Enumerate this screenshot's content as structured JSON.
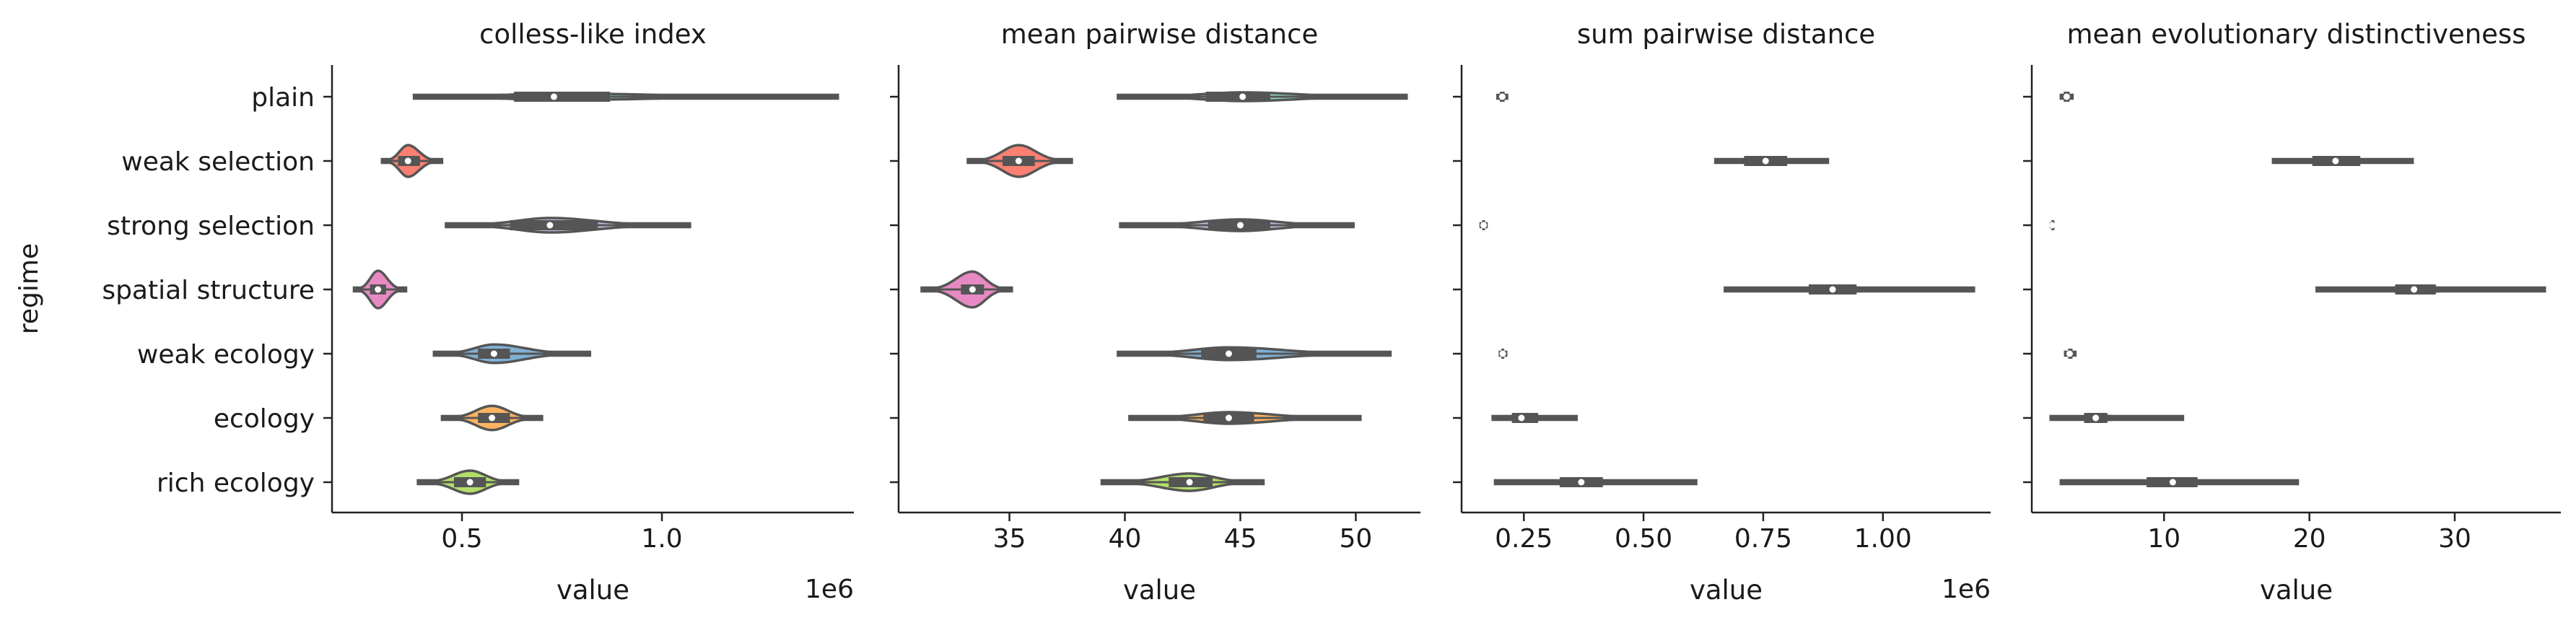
{
  "figure": {
    "ylabel": "regime"
  },
  "categories": [
    "plain",
    "weak selection",
    "strong selection",
    "spatial structure",
    "weak ecology",
    "ecology",
    "rich ecology"
  ],
  "colors": {
    "plain": "#8dd3c7",
    "weak selection": "#fb8072",
    "strong selection": "#bebada",
    "spatial structure": "#e78ac3",
    "weak ecology": "#80b1d3",
    "ecology": "#fdb462",
    "rich ecology": "#b3de69",
    "line": "#555555"
  },
  "chart_data": [
    {
      "type": "violin",
      "title": "colless-like index",
      "xlabel": "value",
      "offset_label": "1e6",
      "xlim": [
        175000,
        1480000
      ],
      "ticks": [
        {
          "v": 500000,
          "label": "0.5"
        },
        {
          "v": 1000000,
          "label": "1.0"
        }
      ],
      "violins": [
        {
          "min": 380000,
          "q1": 630000,
          "median": 730000,
          "q3": 870000,
          "max": 1440000,
          "width": 0.12
        },
        {
          "min": 300000,
          "q1": 340000,
          "median": 365000,
          "q3": 395000,
          "max": 450000,
          "width": 0.55
        },
        {
          "min": 460000,
          "q1": 620000,
          "median": 720000,
          "q3": 840000,
          "max": 1070000,
          "width": 0.25
        },
        {
          "min": 230000,
          "q1": 270000,
          "median": 290000,
          "q3": 310000,
          "max": 360000,
          "width": 0.65
        },
        {
          "min": 430000,
          "q1": 540000,
          "median": 580000,
          "q3": 620000,
          "max": 820000,
          "width": 0.32
        },
        {
          "min": 450000,
          "q1": 540000,
          "median": 575000,
          "q3": 620000,
          "max": 700000,
          "width": 0.42
        },
        {
          "min": 390000,
          "q1": 480000,
          "median": 520000,
          "q3": 560000,
          "max": 640000,
          "width": 0.4
        }
      ]
    },
    {
      "type": "violin",
      "title": "mean pairwise distance",
      "xlabel": "value",
      "offset_label": "",
      "xlim": [
        30.2,
        52.8
      ],
      "ticks": [
        {
          "v": 35,
          "label": "35"
        },
        {
          "v": 40,
          "label": "40"
        },
        {
          "v": 45,
          "label": "45"
        },
        {
          "v": 50,
          "label": "50"
        }
      ],
      "violins": [
        {
          "min": 39.7,
          "q1": 43.5,
          "median": 45.1,
          "q3": 46.3,
          "max": 52.2,
          "width": 0.15
        },
        {
          "min": 33.2,
          "q1": 34.7,
          "median": 35.4,
          "q3": 36.1,
          "max": 37.7,
          "width": 0.55
        },
        {
          "min": 39.8,
          "q1": 43.6,
          "median": 45.0,
          "q3": 46.3,
          "max": 49.9,
          "width": 0.2
        },
        {
          "min": 31.2,
          "q1": 32.9,
          "median": 33.4,
          "q3": 33.9,
          "max": 35.1,
          "width": 0.62
        },
        {
          "min": 39.7,
          "q1": 43.3,
          "median": 44.5,
          "q3": 45.7,
          "max": 51.5,
          "width": 0.22
        },
        {
          "min": 40.2,
          "q1": 43.4,
          "median": 44.5,
          "q3": 45.6,
          "max": 50.2,
          "width": 0.2
        },
        {
          "min": 39.0,
          "q1": 41.9,
          "median": 42.8,
          "q3": 43.8,
          "max": 46.0,
          "width": 0.3
        }
      ]
    },
    {
      "type": "violin",
      "title": "sum pairwise distance",
      "xlabel": "value",
      "offset_label": "1e6",
      "xlim": [
        120000,
        1225000
      ],
      "ticks": [
        {
          "v": 250000,
          "label": "0.25"
        },
        {
          "v": 500000,
          "label": "0.50"
        },
        {
          "v": 750000,
          "label": "0.75"
        },
        {
          "v": 1000000,
          "label": "1.00"
        }
      ],
      "violins": [
        {
          "min": 195000,
          "q1": 200000,
          "median": 205000,
          "q3": 210000,
          "max": 215000,
          "width": 0.02
        },
        {
          "min": 650000,
          "q1": 710000,
          "median": 755000,
          "q3": 800000,
          "max": 885000,
          "width": 0.04
        },
        {
          "min": 160000,
          "q1": 163000,
          "median": 166000,
          "q3": 169000,
          "max": 172000,
          "width": 0.02
        },
        {
          "min": 670000,
          "q1": 845000,
          "median": 895000,
          "q3": 945000,
          "max": 1190000,
          "width": 0.03
        },
        {
          "min": 200000,
          "q1": 203000,
          "median": 206000,
          "q3": 209000,
          "max": 213000,
          "width": 0.02
        },
        {
          "min": 185000,
          "q1": 225000,
          "median": 245000,
          "q3": 280000,
          "max": 360000,
          "width": 0.04
        },
        {
          "min": 190000,
          "q1": 325000,
          "median": 370000,
          "q3": 415000,
          "max": 610000,
          "width": 0.03
        }
      ]
    },
    {
      "type": "violin",
      "title": "mean evolutionary distinctiveness",
      "xlabel": "value",
      "offset_label": "",
      "xlim": [
        0.9,
        37.3
      ],
      "ticks": [
        {
          "v": 10,
          "label": "10"
        },
        {
          "v": 20,
          "label": "20"
        },
        {
          "v": 30,
          "label": "30"
        }
      ],
      "violins": [
        {
          "min": 2.9,
          "q1": 3.1,
          "median": 3.3,
          "q3": 3.5,
          "max": 3.7,
          "width": 0.02
        },
        {
          "min": 17.5,
          "q1": 20.2,
          "median": 21.8,
          "q3": 23.5,
          "max": 27.1,
          "width": 0.04
        },
        {
          "min": 2.2,
          "q1": 2.25,
          "median": 2.3,
          "q3": 2.35,
          "max": 2.4,
          "width": 0.02
        },
        {
          "min": 20.5,
          "q1": 25.9,
          "median": 27.2,
          "q3": 28.7,
          "max": 36.2,
          "width": 0.03
        },
        {
          "min": 3.2,
          "q1": 3.4,
          "median": 3.5,
          "q3": 3.7,
          "max": 3.9,
          "width": 0.02
        },
        {
          "min": 2.2,
          "q1": 4.5,
          "median": 5.3,
          "q3": 6.1,
          "max": 11.3,
          "width": 0.03
        },
        {
          "min": 2.9,
          "q1": 8.8,
          "median": 10.6,
          "q3": 12.3,
          "max": 19.2,
          "width": 0.03
        }
      ]
    }
  ]
}
